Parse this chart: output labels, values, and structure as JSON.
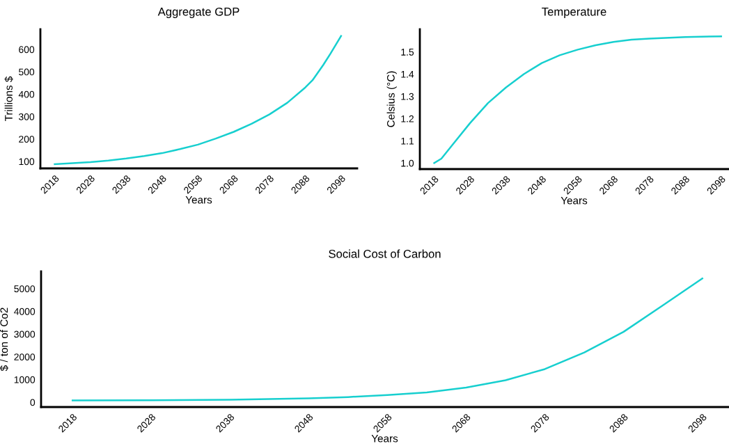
{
  "chart_data": [
    {
      "type": "line",
      "title": "Aggregate GDP",
      "xlabel": "Years",
      "ylabel": "Trillions $",
      "xlim": [
        2014,
        2102.5
      ],
      "ylim": [
        69,
        690
      ],
      "xticks": [
        2018,
        2028,
        2038,
        2048,
        2058,
        2068,
        2078,
        2088,
        2098
      ],
      "yticks": [
        100,
        200,
        300,
        400,
        500,
        600
      ],
      "series": [
        {
          "color": "#17cfcf",
          "x": [
            2018,
            2023,
            2028,
            2033,
            2038,
            2043,
            2048,
            2053,
            2058,
            2063,
            2068,
            2073,
            2078,
            2083,
            2088,
            2090,
            2093,
            2095,
            2098
          ],
          "values": [
            88,
            92,
            97,
            104,
            113,
            124,
            137,
            155,
            175,
            202,
            232,
            268,
            310,
            362,
            430,
            462,
            530,
            580,
            660
          ]
        }
      ]
    },
    {
      "type": "line",
      "title": "Temperature",
      "xlabel": "Years",
      "ylabel": "Celsius (°C)",
      "xlim": [
        2014,
        2100
      ],
      "ylim": [
        0.973,
        1.602
      ],
      "xticks": [
        2018,
        2028,
        2038,
        2048,
        2058,
        2068,
        2078,
        2088,
        2098
      ],
      "yticks": [
        {
          "value": 1.0,
          "label": "1.0"
        },
        1.1,
        1.2,
        1.3,
        1.4,
        1.5
      ],
      "series": [
        {
          "color": "#17cfcf",
          "x": [
            2018,
            2020,
            2023,
            2028,
            2033,
            2038,
            2043,
            2048,
            2053,
            2058,
            2063,
            2068,
            2073,
            2078,
            2088,
            2098
          ],
          "values": [
            1.0,
            1.02,
            1.08,
            1.18,
            1.27,
            1.34,
            1.4,
            1.45,
            1.485,
            1.51,
            1.53,
            1.545,
            1.555,
            1.56,
            1.567,
            1.57
          ]
        }
      ]
    },
    {
      "type": "line",
      "title": "Social Cost of Carbon",
      "xlabel": "Years",
      "ylabel": "$ / ton of Co2",
      "xlim": [
        2014,
        2101.3
      ],
      "ylim": [
        -210,
        5760
      ],
      "xticks": [
        2018,
        2028,
        2038,
        2048,
        2058,
        2068,
        2078,
        2088,
        2098
      ],
      "yticks": [
        0,
        1000,
        2000,
        3000,
        4000,
        5000
      ],
      "series": [
        {
          "color": "#17cfcf",
          "x": [
            2018,
            2028,
            2038,
            2048,
            2053,
            2058,
            2063,
            2068,
            2073,
            2078,
            2083,
            2088,
            2093,
            2098
          ],
          "values": [
            80,
            90,
            110,
            170,
            230,
            320,
            430,
            650,
            970,
            1460,
            2190,
            3100,
            4270,
            5450
          ]
        }
      ]
    }
  ]
}
